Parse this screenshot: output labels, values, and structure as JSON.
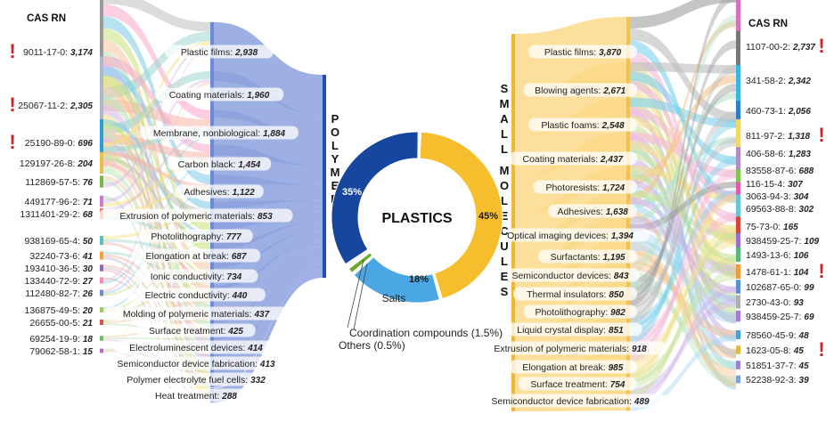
{
  "chart_data": {
    "type": "sankey-donut",
    "center_label": "PLASTICS",
    "donut": [
      {
        "name": "Small molecules",
        "value": 45,
        "label": "45%",
        "color": "#f6be2c"
      },
      {
        "name": "Salts",
        "value": 18,
        "label": "18%",
        "color": "#4aa7e4"
      },
      {
        "name": "Coordination compounds",
        "value": 1.5,
        "label": "Coordination compounds (1.5%)",
        "color": "#6aaa2a"
      },
      {
        "name": "Others",
        "value": 0.5,
        "label": "Others (0.5%)",
        "color": "#e0442a"
      },
      {
        "name": "Polymers",
        "value": 35,
        "label": "35%",
        "color": "#16469e"
      }
    ],
    "salts_label": "Salts",
    "left_header": "CAS RN",
    "right_header": "CAS RN",
    "polymers_word": "POLYMERS",
    "small_word": "SMALL MOLECULES",
    "left_cas": [
      {
        "cas": "9011-17-0",
        "value": "3,174",
        "flag": true
      },
      {
        "cas": "25067-11-2",
        "value": "2,305",
        "flag": true
      },
      {
        "cas": "25190-89-0",
        "value": "696",
        "flag": true
      },
      {
        "cas": "129197-26-8",
        "value": "204",
        "flag": false
      },
      {
        "cas": "112869-57-5",
        "value": "76",
        "flag": false
      },
      {
        "cas": "449177-96-2",
        "value": "71",
        "flag": false
      },
      {
        "cas": "1311401-29-2",
        "value": "68",
        "flag": false
      },
      {
        "cas": "938169-65-4",
        "value": "50",
        "flag": false
      },
      {
        "cas": "32240-73-6",
        "value": "41",
        "flag": false
      },
      {
        "cas": "193410-36-5",
        "value": "30",
        "flag": false
      },
      {
        "cas": "133440-72-9",
        "value": "27",
        "flag": false
      },
      {
        "cas": "112480-82-7",
        "value": "26",
        "flag": false
      },
      {
        "cas": "136875-49-5",
        "value": "20",
        "flag": false
      },
      {
        "cas": "26655-00-5",
        "value": "21",
        "flag": false
      },
      {
        "cas": "69254-19-9",
        "value": "18",
        "flag": false
      },
      {
        "cas": "79062-58-1",
        "value": "15",
        "flag": false
      }
    ],
    "left_apps": [
      {
        "name": "Plastic films",
        "value": "2,938"
      },
      {
        "name": "Coating materials",
        "value": "1,960"
      },
      {
        "name": "Membrane, nonbiological",
        "value": "1,884"
      },
      {
        "name": "Carbon black",
        "value": "1,454"
      },
      {
        "name": "Adhesives",
        "value": "1,122"
      },
      {
        "name": "Extrusion of polymeric materials",
        "value": "853"
      },
      {
        "name": "Photolithography",
        "value": "777"
      },
      {
        "name": "Elongation at break",
        "value": "687"
      },
      {
        "name": "Ionic conductivity",
        "value": "734"
      },
      {
        "name": "Electric conductivity",
        "value": "440"
      },
      {
        "name": "Molding of polymeric materials",
        "value": "437"
      },
      {
        "name": "Surface treatment",
        "value": "425"
      },
      {
        "name": "Electroluminescent devices",
        "value": "414"
      },
      {
        "name": "Semiconductor device fabrication",
        "value": "413"
      },
      {
        "name": "Polymer electrolyte fuel cells",
        "value": "332"
      },
      {
        "name": "Heat treatment",
        "value": "288"
      }
    ],
    "right_apps": [
      {
        "name": "Plastic films",
        "value": "3,870"
      },
      {
        "name": "Blowing agents",
        "value": "2,671"
      },
      {
        "name": "Plastic foams",
        "value": "2,548"
      },
      {
        "name": "Coating materials",
        "value": "2,437"
      },
      {
        "name": "Photoresists",
        "value": "1,724"
      },
      {
        "name": "Adhesives",
        "value": "1,638"
      },
      {
        "name": "Optical imaging devices",
        "value": "1,394"
      },
      {
        "name": "Surfactants",
        "value": "1,195"
      },
      {
        "name": "Semiconductor devices",
        "value": "843"
      },
      {
        "name": "Thermal insulators",
        "value": "850"
      },
      {
        "name": "Photolithography",
        "value": "982"
      },
      {
        "name": "Liquid crystal display",
        "value": "851"
      },
      {
        "name": "Extrusion of polymeric materials",
        "value": "918"
      },
      {
        "name": "Elongation at break",
        "value": "985"
      },
      {
        "name": "Surface treatment",
        "value": "754"
      },
      {
        "name": "Semiconductor device fabrication",
        "value": "489"
      }
    ],
    "right_cas": [
      {
        "cas": "1107-00-2",
        "value": "2,737",
        "flag": true
      },
      {
        "cas": "341-58-2",
        "value": "2,342",
        "flag": false
      },
      {
        "cas": "460-73-1",
        "value": "2,056",
        "flag": false
      },
      {
        "cas": "811-97-2",
        "value": "1,318",
        "flag": true
      },
      {
        "cas": "406-58-6",
        "value": "1,283",
        "flag": false
      },
      {
        "cas": "83558-87-6",
        "value": "688",
        "flag": false
      },
      {
        "cas": "116-15-4",
        "value": "307",
        "flag": false
      },
      {
        "cas": "3063-94-3",
        "value": "304",
        "flag": false
      },
      {
        "cas": "69563-88-8",
        "value": "302",
        "flag": false
      },
      {
        "cas": "75-73-0",
        "value": "165",
        "flag": false
      },
      {
        "cas": "938459-25-7",
        "value": "109",
        "flag": false
      },
      {
        "cas": "1493-13-6",
        "value": "106",
        "flag": false
      },
      {
        "cas": "1478-61-1",
        "value": "104",
        "flag": true
      },
      {
        "cas": "102687-65-0",
        "value": "99",
        "flag": false
      },
      {
        "cas": "2730-43-0",
        "value": "93",
        "flag": false
      },
      {
        "cas": "938459-25-7",
        "value": "69",
        "flag": false
      },
      {
        "cas": "78560-45-9",
        "value": "48",
        "flag": false
      },
      {
        "cas": "1623-05-8",
        "value": "45",
        "flag": true
      },
      {
        "cas": "51851-37-7",
        "value": "45",
        "flag": false
      },
      {
        "cas": "52238-92-3",
        "value": "39",
        "flag": false
      }
    ],
    "left_cas_colors": [
      "#9a9a9a",
      "#aeb6c8",
      "#2a9fd8",
      "#e8c04a",
      "#7ab648",
      "#c77fc9",
      "#e07a5f",
      "#5bc0be",
      "#f2a33a",
      "#8d6cab",
      "#f48fb1",
      "#6c8ebf",
      "#a3c86a",
      "#d9534f",
      "#66bb6a",
      "#ba68c8"
    ],
    "right_cas_colors": [
      "#d86fc0",
      "#777777",
      "#39b6e6",
      "#2a7fd0",
      "#f2d66a",
      "#b48ac7",
      "#7ac94d",
      "#e25aa8",
      "#66c5d9",
      "#d4473a",
      "#9a6fd3",
      "#58b87a",
      "#f09a3a",
      "#5a8fd6",
      "#b0b0b0",
      "#a77ad8",
      "#4aa0d8",
      "#e0b940",
      "#9f7fd0",
      "#7f9fd8"
    ],
    "left_flow_colors": [
      "#bfbfbf",
      "#f7a8c8",
      "#7ecbe8",
      "#c9e07a",
      "#f5c6a0",
      "#b8e0b0",
      "#d4b8e8",
      "#f9e07a",
      "#9fd6cf",
      "#f7b3a6"
    ],
    "right_flow_colors": [
      "#9e9e9e",
      "#bdbdbd",
      "#7ed0ec",
      "#f5b8d8",
      "#f0e08a",
      "#c8e29a",
      "#d1b3e6",
      "#a7d8f2",
      "#f6c38c",
      "#b9e4c9"
    ]
  }
}
